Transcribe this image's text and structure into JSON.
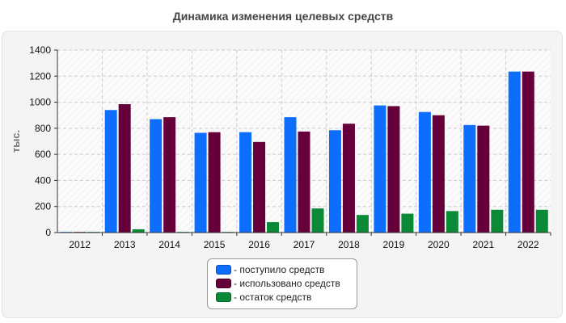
{
  "chart_data": {
    "type": "bar",
    "title": "Динамика изменения целевых средств",
    "ylabel": "тыс.",
    "xlabel": "",
    "ylim": [
      0,
      1400
    ],
    "yticks": [
      0,
      200,
      400,
      600,
      800,
      1000,
      1200,
      1400
    ],
    "grid": true,
    "legend_placement": "bottom-center",
    "categories": [
      "2012",
      "2013",
      "2014",
      "2015",
      "2016",
      "2017",
      "2018",
      "2019",
      "2020",
      "2021",
      "2022"
    ],
    "series": [
      {
        "name": "- поступило средств",
        "color": "#0d6efd",
        "values": [
          5,
          940,
          870,
          765,
          770,
          885,
          785,
          975,
          925,
          825,
          1235
        ]
      },
      {
        "name": "- использовано средств",
        "color": "#66003a",
        "values": [
          5,
          985,
          885,
          770,
          695,
          775,
          835,
          970,
          900,
          820,
          1235
        ]
      },
      {
        "name": "- остаток средств",
        "color": "#0a8a37",
        "values": [
          5,
          25,
          5,
          5,
          80,
          185,
          135,
          145,
          165,
          175,
          175
        ]
      }
    ]
  }
}
